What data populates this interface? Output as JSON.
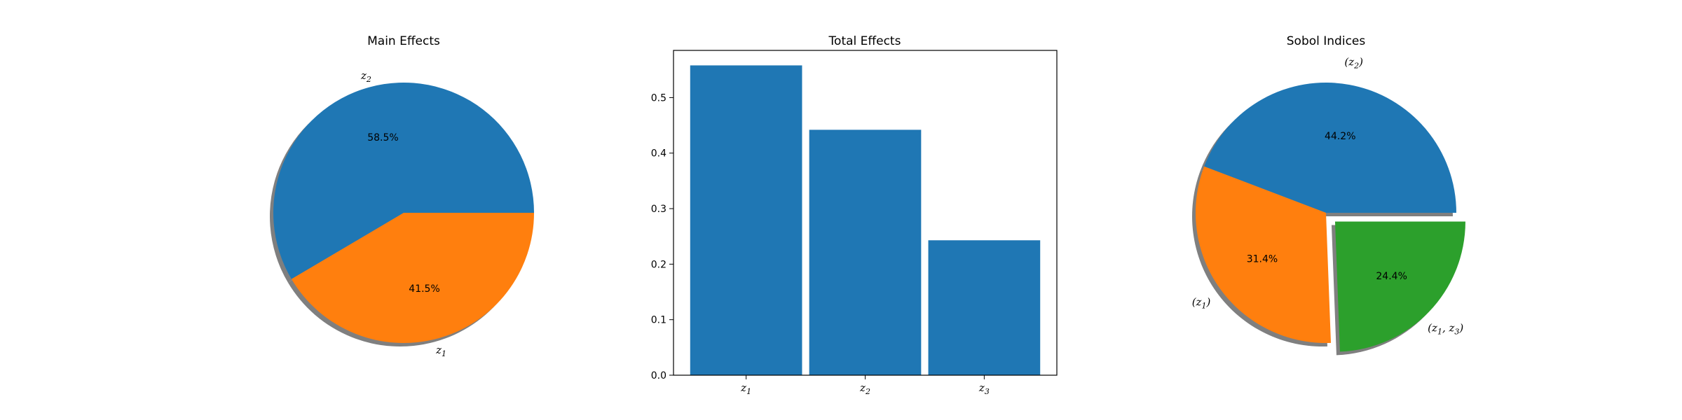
{
  "chart_data": [
    {
      "type": "pie",
      "title": "Main Effects",
      "slices": [
        {
          "label": "z",
          "sub": "2",
          "value": 58.5,
          "pct_label": "58.5%",
          "color": "#1f77b4"
        },
        {
          "label": "z",
          "sub": "1",
          "value": 41.5,
          "pct_label": "41.5%",
          "color": "#ff7f0e"
        }
      ],
      "shadow": true
    },
    {
      "type": "bar",
      "title": "Total Effects",
      "categories": [
        {
          "label": "z",
          "sub": "1"
        },
        {
          "label": "z",
          "sub": "2"
        },
        {
          "label": "z",
          "sub": "3"
        }
      ],
      "values": [
        0.558,
        0.442,
        0.243
      ],
      "color": "#1f77b4",
      "ylim": [
        0,
        0.585
      ],
      "yticks": [
        "0.0",
        "0.1",
        "0.2",
        "0.3",
        "0.4",
        "0.5"
      ],
      "grid": false
    },
    {
      "type": "pie",
      "title": "Sobol Indices",
      "slices": [
        {
          "label": "(z",
          "sub": "2",
          "suffix": ")",
          "value": 44.2,
          "pct_label": "44.2%",
          "color": "#1f77b4",
          "explode": false
        },
        {
          "label": "(z",
          "sub": "1",
          "suffix": ")",
          "value": 31.4,
          "pct_label": "31.4%",
          "color": "#ff7f0e",
          "explode": false
        },
        {
          "label": "(z",
          "sub": "1",
          "mid": ", z",
          "sub2": "3",
          "suffix": ")",
          "value": 24.4,
          "pct_label": "24.4%",
          "color": "#2ca02c",
          "explode": true
        }
      ],
      "shadow": true
    }
  ]
}
